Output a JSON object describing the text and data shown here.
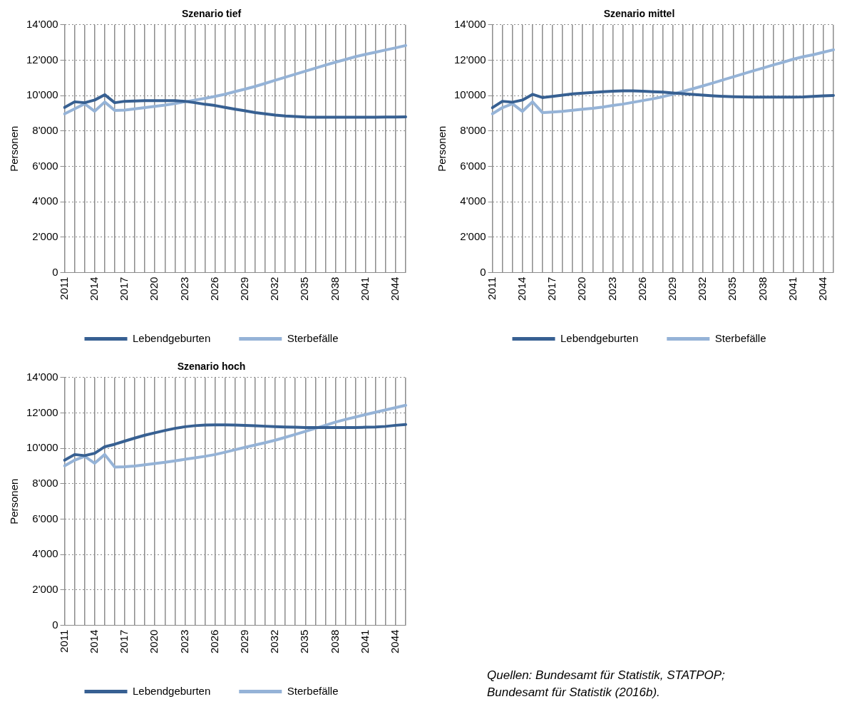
{
  "chart_data": [
    {
      "type": "line",
      "title": "Szenario tief",
      "ylabel": "Personen",
      "categories": [
        "2011",
        null,
        null,
        "2014",
        null,
        null,
        "2017",
        null,
        null,
        "2020",
        null,
        null,
        "2023",
        null,
        null,
        "2026",
        null,
        null,
        "2029",
        null,
        null,
        "2032",
        null,
        null,
        "2035",
        null,
        null,
        "2038",
        null,
        null,
        "2041",
        null,
        null,
        "2044",
        null
      ],
      "series": [
        {
          "name": "Lebendgeburten",
          "color": "#376092",
          "values": [
            9330,
            9650,
            9600,
            9750,
            10050,
            9600,
            9680,
            9700,
            9720,
            9720,
            9720,
            9720,
            9680,
            9600,
            9510,
            9440,
            9330,
            9230,
            9140,
            9040,
            8970,
            8900,
            8850,
            8820,
            8790,
            8780,
            8780,
            8780,
            8780,
            8780,
            8780,
            8780,
            8790,
            8790,
            8800
          ]
        },
        {
          "name": "Sterbefälle",
          "color": "#95b3d7",
          "values": [
            8970,
            9250,
            9540,
            9120,
            9640,
            9160,
            9180,
            9250,
            9320,
            9390,
            9460,
            9550,
            9650,
            9750,
            9850,
            9960,
            10080,
            10230,
            10370,
            10520,
            10690,
            10870,
            11040,
            11210,
            11380,
            11550,
            11720,
            11890,
            12040,
            12200,
            12330,
            12450,
            12580,
            12700,
            12830
          ]
        }
      ],
      "ylim": [
        0,
        14000
      ],
      "yticks": [
        {
          "value": 0,
          "label": "0"
        },
        {
          "value": 2000,
          "label": "2'000"
        },
        {
          "value": 4000,
          "label": "4'000"
        },
        {
          "value": 6000,
          "label": "6'000"
        },
        {
          "value": 8000,
          "label": "8'000"
        },
        {
          "value": 10000,
          "label": "10'000"
        },
        {
          "value": 12000,
          "label": "12'000"
        },
        {
          "value": 14000,
          "label": "14'000"
        }
      ],
      "grid": true,
      "legend": "bottom",
      "marker": "none",
      "line_style": "solid"
    },
    {
      "type": "line",
      "title": "Szenario mittel",
      "ylabel": "Personen",
      "categories": [
        "2011",
        null,
        null,
        "2014",
        null,
        null,
        "2017",
        null,
        null,
        "2020",
        null,
        null,
        "2023",
        null,
        null,
        "2026",
        null,
        null,
        "2029",
        null,
        null,
        "2032",
        null,
        null,
        "2035",
        null,
        null,
        "2038",
        null,
        null,
        "2041",
        null,
        null,
        "2044",
        null
      ],
      "series": [
        {
          "name": "Lebendgeburten",
          "color": "#376092",
          "values": [
            9320,
            9680,
            9630,
            9750,
            10070,
            9890,
            9960,
            10030,
            10100,
            10140,
            10180,
            10220,
            10250,
            10270,
            10270,
            10250,
            10220,
            10200,
            10150,
            10110,
            10070,
            10030,
            9990,
            9960,
            9940,
            9930,
            9920,
            9920,
            9920,
            9920,
            9920,
            9930,
            9960,
            9990,
            10010
          ]
        },
        {
          "name": "Sterbefälle",
          "color": "#95b3d7",
          "values": [
            8970,
            9320,
            9540,
            9110,
            9650,
            9040,
            9070,
            9110,
            9170,
            9230,
            9280,
            9350,
            9440,
            9520,
            9620,
            9720,
            9820,
            9940,
            10080,
            10240,
            10390,
            10550,
            10720,
            10890,
            11060,
            11230,
            11400,
            11560,
            11730,
            11890,
            12060,
            12200,
            12310,
            12450,
            12590
          ]
        }
      ],
      "ylim": [
        0,
        14000
      ],
      "yticks": [
        {
          "value": 0,
          "label": "0"
        },
        {
          "value": 2000,
          "label": "2'000"
        },
        {
          "value": 4000,
          "label": "4'000"
        },
        {
          "value": 6000,
          "label": "6'000"
        },
        {
          "value": 8000,
          "label": "8'000"
        },
        {
          "value": 10000,
          "label": "10'000"
        },
        {
          "value": 12000,
          "label": "12'000"
        },
        {
          "value": 14000,
          "label": "14'000"
        }
      ],
      "grid": true,
      "legend": "bottom",
      "marker": "none",
      "line_style": "solid"
    },
    {
      "type": "line",
      "title": "Szenario hoch",
      "ylabel": "Personen",
      "categories": [
        "2011",
        null,
        null,
        "2014",
        null,
        null,
        "2017",
        null,
        null,
        "2020",
        null,
        null,
        "2023",
        null,
        null,
        "2026",
        null,
        null,
        "2029",
        null,
        null,
        "2032",
        null,
        null,
        "2035",
        null,
        null,
        "2038",
        null,
        null,
        "2041",
        null,
        null,
        "2044",
        null
      ],
      "series": [
        {
          "name": "Lebendgeburten",
          "color": "#376092",
          "values": [
            9330,
            9650,
            9590,
            9720,
            10090,
            10230,
            10410,
            10580,
            10740,
            10880,
            11010,
            11130,
            11220,
            11280,
            11320,
            11330,
            11330,
            11320,
            11300,
            11280,
            11250,
            11220,
            11200,
            11190,
            11170,
            11170,
            11170,
            11170,
            11170,
            11170,
            11190,
            11200,
            11240,
            11300,
            11350
          ]
        },
        {
          "name": "Sterbefälle",
          "color": "#95b3d7",
          "values": [
            9010,
            9330,
            9550,
            9160,
            9650,
            8940,
            8960,
            9000,
            9070,
            9140,
            9210,
            9290,
            9380,
            9460,
            9550,
            9650,
            9780,
            9920,
            10060,
            10190,
            10320,
            10460,
            10620,
            10790,
            10960,
            11130,
            11300,
            11480,
            11630,
            11770,
            11910,
            12040,
            12170,
            12300,
            12430
          ]
        }
      ],
      "ylim": [
        0,
        14000
      ],
      "yticks": [
        {
          "value": 0,
          "label": "0"
        },
        {
          "value": 2000,
          "label": "2'000"
        },
        {
          "value": 4000,
          "label": "4'000"
        },
        {
          "value": 6000,
          "label": "6'000"
        },
        {
          "value": 8000,
          "label": "8'000"
        },
        {
          "value": 10000,
          "label": "10'000"
        },
        {
          "value": 12000,
          "label": "12'000"
        },
        {
          "value": 14000,
          "label": "14'000"
        }
      ],
      "grid": true,
      "legend": "bottom",
      "marker": "none",
      "line_style": "solid",
      "annotations": [
        "Quellen: Bundesamt für Statistik, STATPOP; Bundesamt für Statistik (2016b)."
      ]
    }
  ]
}
